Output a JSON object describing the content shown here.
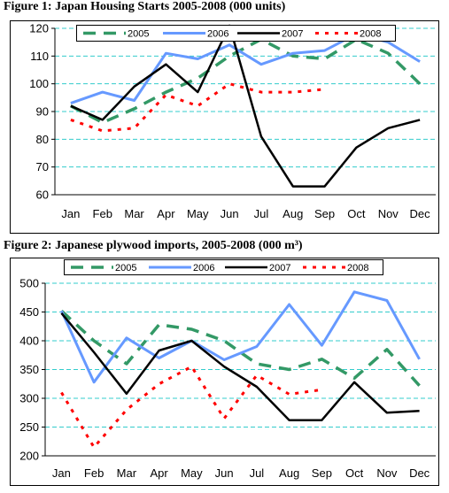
{
  "figures": [
    {
      "title": "Figure 1: Japan Housing Starts 2005-2008 (000 units)"
    },
    {
      "title": "Figure 2: Japanese plywood imports, 2005-2008 (000 m³)"
    }
  ],
  "colors": {
    "2005": "#339966",
    "2006": "#6699ff",
    "2007": "#000000",
    "2008": "#ff0000",
    "grid": "#33cccc"
  },
  "chart_data": [
    {
      "type": "line",
      "title": "Figure 1: Japan Housing Starts 2005-2008 (000 units)",
      "categories": [
        "Jan",
        "Feb",
        "Mar",
        "Apr",
        "May",
        "Jun",
        "Jul",
        "Aug",
        "Sep",
        "Oct",
        "Nov",
        "Dec"
      ],
      "ylim": [
        60,
        120
      ],
      "yticks": [
        60,
        70,
        80,
        90,
        100,
        110,
        120
      ],
      "grid": true,
      "legend": "top",
      "series": [
        {
          "name": "2005",
          "values": [
            92,
            86,
            91,
            97,
            102,
            110,
            116,
            110,
            109,
            116,
            111,
            100
          ]
        },
        {
          "name": "2006",
          "values": [
            93,
            97,
            94,
            111,
            109,
            114,
            107,
            111,
            112,
            118,
            115,
            108
          ]
        },
        {
          "name": "2007",
          "values": [
            92,
            87,
            99,
            107,
            97,
            121,
            81,
            63,
            63,
            77,
            84,
            87
          ]
        },
        {
          "name": "2008",
          "values": [
            87,
            83,
            84,
            96,
            92,
            100,
            97,
            97,
            98,
            null,
            null,
            null
          ]
        }
      ]
    },
    {
      "type": "line",
      "title": "Figure 2: Japanese plywood imports, 2005-2008 (000 m³)",
      "categories": [
        "Jan",
        "Feb",
        "Mar",
        "Apr",
        "May",
        "Jun",
        "Jul",
        "Aug",
        "Sep",
        "Oct",
        "Nov",
        "Dec"
      ],
      "ylim": [
        200,
        500
      ],
      "yticks": [
        200,
        250,
        300,
        350,
        400,
        450,
        500
      ],
      "grid": true,
      "legend": "top",
      "series": [
        {
          "name": "2005",
          "values": [
            452,
            400,
            360,
            428,
            420,
            400,
            360,
            350,
            368,
            335,
            385,
            322
          ]
        },
        {
          "name": "2006",
          "values": [
            452,
            328,
            405,
            370,
            400,
            367,
            390,
            463,
            392,
            485,
            470,
            368
          ]
        },
        {
          "name": "2007",
          "values": [
            448,
            380,
            308,
            383,
            400,
            355,
            320,
            262,
            262,
            328,
            275,
            278
          ]
        },
        {
          "name": "2008",
          "values": [
            310,
            215,
            280,
            325,
            355,
            265,
            340,
            307,
            315,
            null,
            null,
            null
          ]
        }
      ]
    }
  ]
}
